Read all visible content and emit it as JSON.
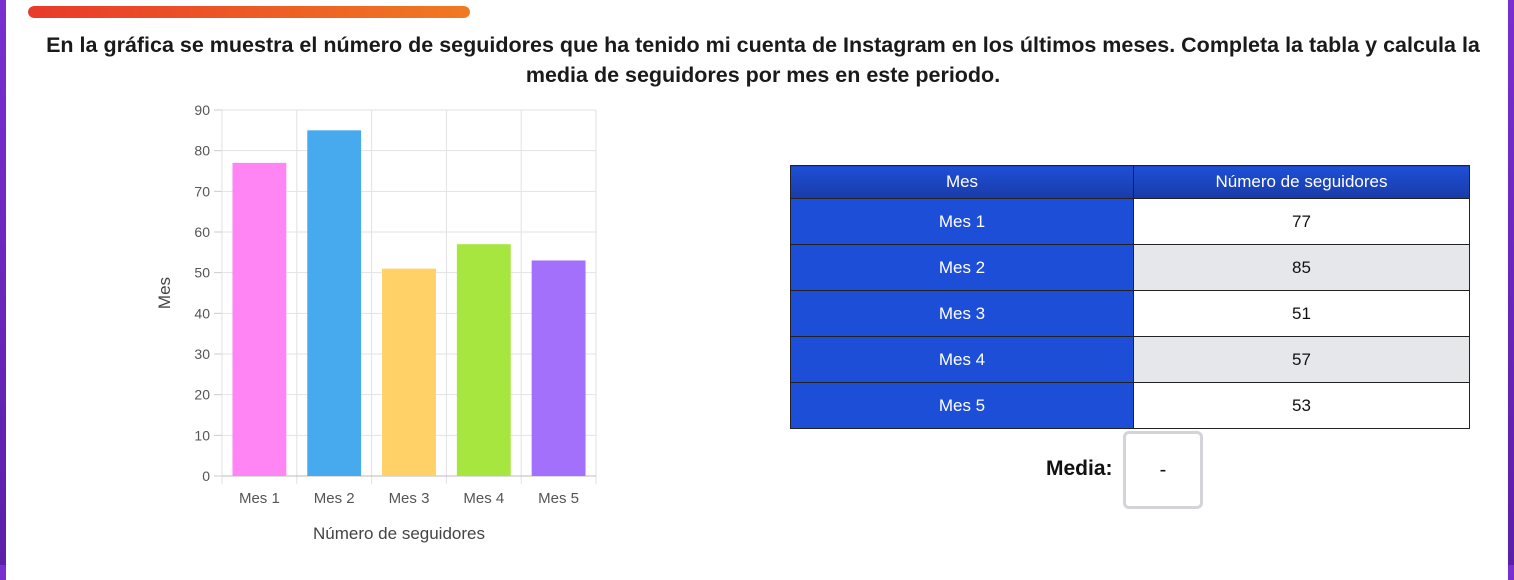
{
  "progress": {
    "fraction": 1.0,
    "colors": [
      "#e83a2a",
      "#f07a22"
    ]
  },
  "question": {
    "text": "En la gráfica se muestra el número de seguidores que ha tenido mi cuenta de Instagram en los últimos meses. Completa la tabla y calcula la media de seguidores por mes en este periodo."
  },
  "chart_data": {
    "type": "bar",
    "categories": [
      "Mes 1",
      "Mes 2",
      "Mes 3",
      "Mes 4",
      "Mes 5"
    ],
    "values": [
      77,
      85,
      51,
      57,
      53
    ],
    "colors": [
      "#ff85f5",
      "#47aaee",
      "#ffd166",
      "#a6e63e",
      "#a370fb"
    ],
    "xlabel": "Número de seguidores",
    "ylabel": "Mes",
    "ylim": [
      0,
      90
    ],
    "yticks": [
      "0",
      "10",
      "20",
      "30",
      "40",
      "50",
      "60",
      "70",
      "80",
      "90"
    ],
    "grid": true
  },
  "table": {
    "headers": [
      "Mes",
      "Número de seguidores"
    ],
    "rows": [
      {
        "month": "Mes 1",
        "value": "77"
      },
      {
        "month": "Mes 2",
        "value": "85"
      },
      {
        "month": "Mes 3",
        "value": "51"
      },
      {
        "month": "Mes 4",
        "value": "57"
      },
      {
        "month": "Mes 5",
        "value": "53"
      }
    ]
  },
  "media": {
    "label": "Media:",
    "value": "-"
  }
}
